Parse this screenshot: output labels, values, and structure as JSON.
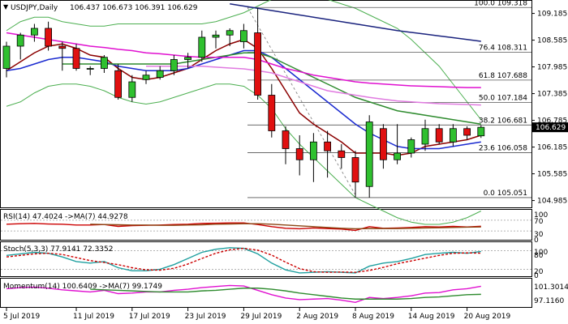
{
  "chart_data": [
    {
      "type": "candlestick",
      "pane": "main",
      "title": "USDJPY,Daily",
      "ohlc_header": "106.437 106.673 106.391 106.629",
      "ylim": [
        104.85,
        109.45
      ],
      "y_ticks": [
        109.185,
        108.585,
        107.985,
        107.385,
        106.785,
        106.185,
        105.585,
        104.985
      ],
      "last_price": "106.629",
      "dates": [
        "2019-07-05",
        "2019-07-08",
        "2019-07-09",
        "2019-07-10",
        "2019-07-11",
        "2019-07-12",
        "2019-07-15",
        "2019-07-16",
        "2019-07-17",
        "2019-07-18",
        "2019-07-19",
        "2019-07-22",
        "2019-07-23",
        "2019-07-24",
        "2019-07-25",
        "2019-07-26",
        "2019-07-29",
        "2019-07-30",
        "2019-07-31",
        "2019-08-01",
        "2019-08-02",
        "2019-08-05",
        "2019-08-06",
        "2019-08-07",
        "2019-08-08",
        "2019-08-09",
        "2019-08-12",
        "2019-08-13",
        "2019-08-14",
        "2019-08-15",
        "2019-08-16",
        "2019-08-19",
        "2019-08-20",
        "2019-08-21",
        "2019-08-22"
      ],
      "candles": [
        {
          "o": 107.95,
          "h": 108.55,
          "l": 107.75,
          "c": 108.45
        },
        {
          "o": 108.45,
          "h": 108.75,
          "l": 108.15,
          "c": 108.7
        },
        {
          "o": 108.7,
          "h": 108.95,
          "l": 108.55,
          "c": 108.85
        },
        {
          "o": 108.85,
          "h": 109.0,
          "l": 108.35,
          "c": 108.45
        },
        {
          "o": 108.45,
          "h": 108.55,
          "l": 107.9,
          "c": 108.4
        },
        {
          "o": 108.4,
          "h": 108.5,
          "l": 107.9,
          "c": 107.95
        },
        {
          "o": 107.95,
          "h": 108.0,
          "l": 107.8,
          "c": 107.95
        },
        {
          "o": 107.95,
          "h": 108.25,
          "l": 107.85,
          "c": 108.2
        },
        {
          "o": 107.9,
          "h": 108.05,
          "l": 107.25,
          "c": 107.3
        },
        {
          "o": 107.3,
          "h": 107.8,
          "l": 107.2,
          "c": 107.65
        },
        {
          "o": 107.7,
          "h": 107.9,
          "l": 107.6,
          "c": 107.8
        },
        {
          "o": 107.75,
          "h": 108.0,
          "l": 107.7,
          "c": 107.9
        },
        {
          "o": 107.9,
          "h": 108.25,
          "l": 107.8,
          "c": 108.15
        },
        {
          "o": 108.15,
          "h": 108.3,
          "l": 107.95,
          "c": 108.2
        },
        {
          "o": 108.2,
          "h": 108.8,
          "l": 108.1,
          "c": 108.65
        },
        {
          "o": 108.65,
          "h": 108.8,
          "l": 108.4,
          "c": 108.7
        },
        {
          "o": 108.7,
          "h": 108.85,
          "l": 108.45,
          "c": 108.8
        },
        {
          "o": 108.55,
          "h": 108.95,
          "l": 108.4,
          "c": 108.8
        },
        {
          "o": 108.75,
          "h": 109.3,
          "l": 107.25,
          "c": 107.35
        },
        {
          "o": 107.35,
          "h": 107.6,
          "l": 106.4,
          "c": 106.55
        },
        {
          "o": 106.55,
          "h": 106.65,
          "l": 105.8,
          "c": 106.15
        },
        {
          "o": 106.15,
          "h": 106.45,
          "l": 105.55,
          "c": 105.9
        },
        {
          "o": 105.9,
          "h": 106.5,
          "l": 105.4,
          "c": 106.3
        },
        {
          "o": 106.3,
          "h": 106.55,
          "l": 105.5,
          "c": 106.1
        },
        {
          "o": 106.1,
          "h": 106.25,
          "l": 105.7,
          "c": 105.95
        },
        {
          "o": 105.95,
          "h": 106.1,
          "l": 105.05,
          "c": 105.4
        },
        {
          "o": 105.3,
          "h": 106.9,
          "l": 105.05,
          "c": 106.75
        },
        {
          "o": 106.6,
          "h": 106.7,
          "l": 105.7,
          "c": 105.9
        },
        {
          "o": 105.9,
          "h": 106.7,
          "l": 105.8,
          "c": 106.05
        },
        {
          "o": 106.05,
          "h": 106.4,
          "l": 105.95,
          "c": 106.35
        },
        {
          "o": 106.25,
          "h": 106.8,
          "l": 106.1,
          "c": 106.6
        },
        {
          "o": 106.6,
          "h": 106.7,
          "l": 106.25,
          "c": 106.3
        },
        {
          "o": 106.3,
          "h": 106.7,
          "l": 106.2,
          "c": 106.6
        },
        {
          "o": 106.6,
          "h": 106.65,
          "l": 106.35,
          "c": 106.45
        },
        {
          "o": 106.437,
          "h": 106.673,
          "l": 106.391,
          "c": 106.629
        }
      ],
      "candle_colors": {
        "bull": "#2fc02f",
        "bear": "#e01010",
        "wick": "#000000",
        "outline": "#000000"
      },
      "moving_averages": [
        {
          "color": "#8b0000",
          "values": [
            107.9,
            108.1,
            108.3,
            108.45,
            108.5,
            108.4,
            108.25,
            108.2,
            107.95,
            107.75,
            107.7,
            107.75,
            107.85,
            107.95,
            108.15,
            108.35,
            108.5,
            108.6,
            108.4,
            107.95,
            107.45,
            106.95,
            106.7,
            106.5,
            106.3,
            106.05,
            106.05,
            106.05,
            106.0,
            106.05,
            106.2,
            106.25,
            106.3,
            106.35,
            106.45
          ]
        },
        {
          "color": "#1a2ad0",
          "values": [
            107.9,
            107.95,
            108.05,
            108.15,
            108.2,
            108.2,
            108.15,
            108.1,
            108.0,
            107.95,
            107.9,
            107.9,
            107.9,
            107.95,
            108.05,
            108.15,
            108.25,
            108.35,
            108.35,
            108.2,
            107.95,
            107.7,
            107.45,
            107.2,
            106.95,
            106.7,
            106.5,
            106.35,
            106.2,
            106.15,
            106.15,
            106.15,
            106.2,
            106.25,
            106.3
          ]
        },
        {
          "color": "#2e8b2e",
          "values": [
            null,
            null,
            null,
            null,
            108.05,
            108.05,
            108.05,
            108.05,
            108.05,
            108.05,
            108.05,
            108.05,
            108.05,
            108.1,
            108.15,
            108.2,
            108.25,
            108.3,
            108.3,
            108.2,
            108.05,
            107.9,
            107.75,
            107.6,
            107.45,
            107.3,
            107.2,
            107.1,
            107.0,
            106.95,
            106.9,
            106.85,
            106.8,
            106.75,
            106.7
          ]
        },
        {
          "color": "#e010d0",
          "values": [
            108.75,
            108.7,
            108.65,
            108.6,
            108.55,
            108.5,
            108.45,
            108.42,
            108.38,
            108.35,
            108.3,
            108.28,
            108.25,
            108.22,
            108.2,
            108.2,
            108.2,
            108.2,
            108.15,
            108.05,
            107.95,
            107.88,
            107.8,
            107.75,
            107.7,
            107.65,
            107.62,
            107.6,
            107.58,
            107.56,
            107.55,
            107.54,
            107.53,
            107.52,
            107.52
          ]
        },
        {
          "color": "#e07ae0",
          "values": [
            null,
            null,
            null,
            null,
            null,
            null,
            null,
            null,
            null,
            null,
            108.0,
            108.0,
            108.0,
            108.0,
            108.0,
            107.98,
            107.96,
            107.94,
            107.9,
            107.85,
            107.75,
            107.65,
            107.55,
            107.45,
            107.4,
            107.35,
            107.3,
            107.26,
            107.22,
            107.2,
            107.18,
            107.16,
            107.15,
            107.14,
            107.13
          ]
        },
        {
          "color": "#1a237e",
          "values": [
            null,
            null,
            null,
            null,
            null,
            null,
            null,
            null,
            null,
            null,
            null,
            null,
            null,
            null,
            null,
            null,
            109.4,
            109.35,
            109.3,
            109.25,
            109.2,
            109.15,
            109.1,
            109.05,
            109.0,
            108.95,
            108.9,
            108.85,
            108.8,
            108.76,
            108.72,
            108.68,
            108.64,
            108.6,
            108.56
          ]
        }
      ],
      "bollinger": {
        "color": "#4caf50",
        "upper": [
          108.8,
          109.0,
          109.1,
          109.1,
          109.0,
          108.95,
          108.9,
          108.9,
          108.95,
          108.95,
          108.95,
          108.95,
          108.95,
          108.95,
          108.95,
          109.0,
          109.1,
          109.2,
          109.35,
          109.5,
          109.55,
          109.55,
          109.55,
          109.5,
          109.4,
          109.3,
          109.15,
          109.0,
          108.85,
          108.6,
          108.3,
          108.0,
          107.6,
          107.2,
          106.8
        ],
        "lower": [
          107.1,
          107.2,
          107.4,
          107.55,
          107.6,
          107.6,
          107.55,
          107.45,
          107.3,
          107.2,
          107.15,
          107.2,
          107.3,
          107.4,
          107.5,
          107.6,
          107.6,
          107.55,
          107.35,
          107.05,
          106.6,
          106.25,
          105.95,
          105.65,
          105.35,
          105.05,
          104.9,
          104.75,
          104.6,
          104.5,
          104.45,
          104.45,
          104.5,
          104.6,
          104.75
        ]
      },
      "fibonacci": [
        {
          "label": "100.0 109.318",
          "value": 109.318
        },
        {
          "label": "76.4 108.311",
          "value": 108.311
        },
        {
          "label": "61.8 107.688",
          "value": 107.688
        },
        {
          "label": "50.0 107.184",
          "value": 107.184
        },
        {
          "label": "38.2 106.681",
          "value": 106.681
        },
        {
          "label": "23.6 106.058",
          "value": 106.058
        },
        {
          "label": "0.0 105.051",
          "value": 105.051
        }
      ]
    },
    {
      "type": "line",
      "pane": "rsi",
      "header": "RSI(14) 47.4024 ->MA(7) 44.9278",
      "ylim": [
        0,
        100
      ],
      "y_ticks": [
        "100",
        "70",
        "30",
        "0"
      ],
      "levels": [
        70,
        30
      ],
      "series": [
        {
          "color": "#cc0000",
          "values": [
            55,
            57,
            58,
            56,
            55,
            52,
            52,
            54,
            47,
            50,
            51,
            52,
            54,
            55,
            58,
            59,
            60,
            60,
            54,
            46,
            40,
            38,
            41,
            39,
            37,
            32,
            46,
            40,
            41,
            43,
            46,
            45,
            47,
            45,
            47.4
          ]
        },
        {
          "color": "#8b4513",
          "values": [
            null,
            null,
            null,
            null,
            null,
            null,
            55,
            54,
            53,
            52,
            52,
            51,
            51,
            52,
            53,
            55,
            56,
            57,
            57,
            55,
            52,
            49,
            46,
            43,
            40,
            38,
            39,
            39,
            39,
            40,
            41,
            42,
            43,
            44,
            44.9
          ]
        }
      ]
    },
    {
      "type": "line",
      "pane": "stoch",
      "header": "Stoch(5,3,3) 77.9141 72.3352",
      "ylim": [
        0,
        100
      ],
      "y_ticks": [
        "100",
        "80",
        "20",
        "0"
      ],
      "levels": [
        80,
        20
      ],
      "series": [
        {
          "color": "#20a0a0",
          "values": [
            65,
            70,
            75,
            72,
            60,
            45,
            40,
            45,
            25,
            15,
            15,
            20,
            35,
            55,
            75,
            85,
            90,
            88,
            70,
            40,
            18,
            8,
            10,
            12,
            10,
            8,
            30,
            40,
            45,
            55,
            68,
            72,
            75,
            72,
            77.9
          ]
        },
        {
          "color": "#cc0000",
          "dashed": true,
          "values": [
            60,
            65,
            70,
            72,
            68,
            58,
            48,
            42,
            35,
            25,
            18,
            17,
            23,
            37,
            55,
            72,
            83,
            88,
            82,
            66,
            43,
            22,
            12,
            10,
            11,
            10,
            16,
            26,
            38,
            47,
            56,
            65,
            72,
            73,
            72.3
          ]
        }
      ]
    },
    {
      "type": "line",
      "pane": "momentum",
      "header": "Momentum(14) 100.6409 ->MA(7) 99.1749",
      "y_ticks": [
        "101.3014",
        "97.1160"
      ],
      "series": [
        {
          "color": "#e010d0",
          "values": [
            100.2,
            100.4,
            100.5,
            100.3,
            100.0,
            99.8,
            99.6,
            99.9,
            99.3,
            99.4,
            99.6,
            99.6,
            99.9,
            100.1,
            100.4,
            100.6,
            100.8,
            100.7,
            99.9,
            99.1,
            98.5,
            98.2,
            98.3,
            98.4,
            98.1,
            97.7,
            98.6,
            98.4,
            98.6,
            98.9,
            99.4,
            99.5,
            100.0,
            100.2,
            100.64
          ]
        },
        {
          "color": "#2e8b2e",
          "values": [
            null,
            null,
            null,
            null,
            null,
            null,
            100.1,
            100.0,
            99.9,
            99.8,
            99.7,
            99.6,
            99.6,
            99.6,
            99.8,
            99.9,
            100.1,
            100.3,
            100.3,
            100.1,
            99.8,
            99.4,
            99.1,
            98.8,
            98.5,
            98.3,
            98.3,
            98.3,
            98.3,
            98.4,
            98.6,
            98.7,
            98.9,
            99.1,
            99.17
          ]
        }
      ]
    }
  ],
  "x_axis_labels": [
    {
      "text": "5 Jul 2019",
      "i": 0
    },
    {
      "text": "11 Jul 2019",
      "i": 5
    },
    {
      "text": "17 Jul 2019",
      "i": 9
    },
    {
      "text": "23 Jul 2019",
      "i": 13
    },
    {
      "text": "29 Jul 2019",
      "i": 17
    },
    {
      "text": "2 Aug 2019",
      "i": 21
    },
    {
      "text": "8 Aug 2019",
      "i": 25
    },
    {
      "text": "14 Aug 2019",
      "i": 29
    },
    {
      "text": "20 Aug 2019",
      "i": 33
    }
  ]
}
